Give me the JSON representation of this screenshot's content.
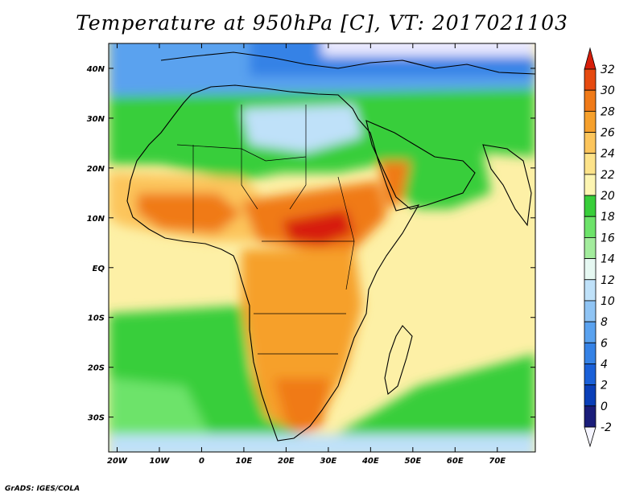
{
  "title": "Temperature at 950hPa [C], VT: 2017021103",
  "credit": "GrADS: IGES/COLA",
  "lat_labels": [
    "40N",
    "30N",
    "20N",
    "10N",
    "EQ",
    "10S",
    "20S",
    "30S"
  ],
  "lat_values": [
    40,
    30,
    20,
    10,
    0,
    -10,
    -20,
    -30
  ],
  "lon_labels": [
    "20W",
    "10W",
    "0",
    "10E",
    "20E",
    "30E",
    "40E",
    "50E",
    "60E",
    "70E"
  ],
  "lon_values": [
    -20,
    -10,
    0,
    10,
    20,
    30,
    40,
    50,
    60,
    70
  ],
  "extent": {
    "lon_min": -22,
    "lon_max": 79,
    "lat_min": -37,
    "lat_max": 45
  },
  "colorbar": {
    "levels": [
      "32",
      "30",
      "28",
      "26",
      "24",
      "22",
      "20",
      "18",
      "16",
      "14",
      "12",
      "10",
      "8",
      "6",
      "4",
      "2",
      "0",
      "-2"
    ],
    "colors": [
      "#f5f5ff",
      "#1a1d7a",
      "#0a3fb8",
      "#1a60d8",
      "#3582e6",
      "#5aa2ef",
      "#8fc4f4",
      "#bfe1f9",
      "#e6f8f2",
      "#a3ec9d",
      "#6de36a",
      "#38ce3a",
      "#fdf5b2",
      "#fde38a",
      "#fcc55c",
      "#f6a02c",
      "#f07a18",
      "#e64a10",
      "#d71e0a"
    ]
  },
  "chart_data": {
    "type": "heatmap",
    "title": "Temperature at 950hPa [C], VT: 2017021103",
    "xlabel": "",
    "ylabel": "",
    "xlim": [
      -22,
      79
    ],
    "ylim": [
      -37,
      45
    ],
    "x_ticks": [
      "20W",
      "10W",
      "0",
      "10E",
      "20E",
      "30E",
      "40E",
      "50E",
      "60E",
      "70E"
    ],
    "y_ticks": [
      "40N",
      "30N",
      "20N",
      "10N",
      "EQ",
      "10S",
      "20S",
      "30S"
    ],
    "color_levels": [
      -2,
      0,
      2,
      4,
      6,
      8,
      10,
      12,
      14,
      16,
      18,
      20,
      22,
      24,
      26,
      28,
      30,
      32
    ],
    "grid": false,
    "legend": "right"
  }
}
